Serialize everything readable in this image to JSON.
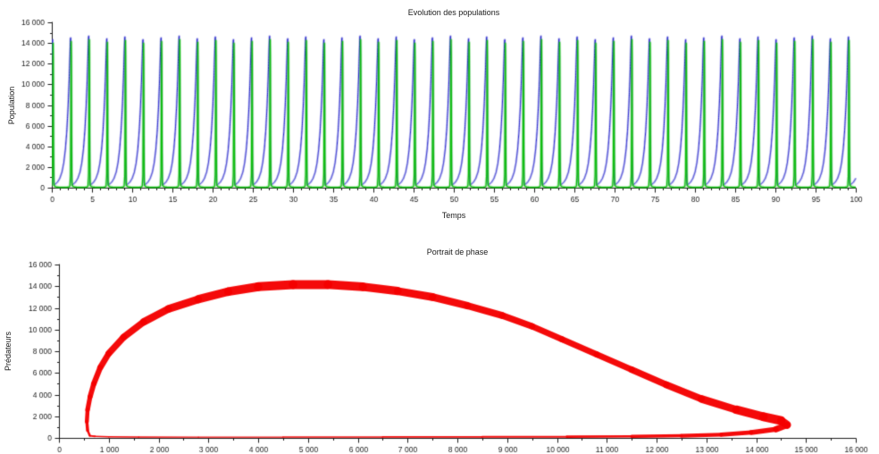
{
  "figure": {
    "background": "#ffffff",
    "axis_color": "#1b1b1b",
    "text_color": "#1b1b1b"
  },
  "chart_data": [
    {
      "id": "evolution",
      "type": "line",
      "title": "Evolution des populations",
      "xlabel": "Temps",
      "ylabel": "Population",
      "xlim": [
        0,
        100
      ],
      "ylim": [
        0,
        16000
      ],
      "x_major_step": 5,
      "x_minor_step": 1,
      "y_major_step": 2000,
      "y_minor_step": 1000,
      "grid": false,
      "legend": null,
      "xtick_labels": [
        "0",
        "5",
        "10",
        "15",
        "20",
        "25",
        "30",
        "35",
        "40",
        "45",
        "50",
        "55",
        "60",
        "65",
        "70",
        "75",
        "80",
        "85",
        "90",
        "95",
        "100"
      ],
      "ytick_labels": [
        "0",
        "2 000",
        "4 000",
        "6 000",
        "8 000",
        "10 000",
        "12 000",
        "14 000",
        "16 000"
      ],
      "description": "Two spiky oscillating population curves (Lotka-Volterra style), ~44 cycles over t=0..100, prey (blue) slow growth then crash, predators (green) narrow spikes, peaks ~14500",
      "series": [
        {
          "name": "blue-population",
          "color": "#2B2BCB",
          "period": 2.25,
          "phase_offset": 0.88,
          "peak_jitter": 0.012,
          "peak_value": 14500,
          "min_value": 280,
          "waveform": [
            [
              0,
              280
            ],
            [
              0.08,
              350
            ],
            [
              0.2,
              550
            ],
            [
              0.32,
              900
            ],
            [
              0.44,
              1500
            ],
            [
              0.54,
              2400
            ],
            [
              0.63,
              3700
            ],
            [
              0.71,
              5500
            ],
            [
              0.78,
              7800
            ],
            [
              0.84,
              10500
            ],
            [
              0.885,
              13200
            ],
            [
              0.91,
              14450
            ],
            [
              0.925,
              14500
            ],
            [
              0.94,
              11000
            ],
            [
              0.955,
              4500
            ],
            [
              0.97,
              1200
            ],
            [
              0.985,
              450
            ],
            [
              1,
              280
            ]
          ]
        },
        {
          "name": "green-population",
          "color": "#0FBE0F",
          "period": 2.25,
          "phase_offset": 0.88,
          "peak_jitter": 0.012,
          "peak_value": 14300,
          "min_value": 30,
          "waveform": [
            [
              0,
              250
            ],
            [
              0.05,
              120
            ],
            [
              0.15,
              60
            ],
            [
              0.3,
              35
            ],
            [
              0.5,
              30
            ],
            [
              0.7,
              35
            ],
            [
              0.82,
              60
            ],
            [
              0.88,
              150
            ],
            [
              0.915,
              1200
            ],
            [
              0.935,
              7500
            ],
            [
              0.95,
              14300
            ],
            [
              0.962,
              12500
            ],
            [
              0.975,
              4000
            ],
            [
              0.99,
              800
            ],
            [
              1,
              250
            ]
          ]
        }
      ]
    },
    {
      "id": "phase",
      "type": "line",
      "title": "Portrait de phase",
      "xlabel": "",
      "ylabel": "Prédateurs",
      "xlim": [
        0,
        16000
      ],
      "ylim": [
        0,
        16000
      ],
      "x_major_step": 1000,
      "x_minor_step": 500,
      "y_major_step": 2000,
      "y_minor_step": 1000,
      "grid": false,
      "legend": null,
      "xtick_labels": [
        "0",
        "1 000",
        "2 000",
        "3 000",
        "4 000",
        "5 000",
        "6 000",
        "7 000",
        "8 000",
        "9 000",
        "10 000",
        "11 000",
        "12 000",
        "13 000",
        "14 000",
        "15 000",
        "16 000"
      ],
      "ytick_labels": [
        "0",
        "2 000",
        "4 000",
        "6 000",
        "8 000",
        "10 000",
        "12 000",
        "14 000",
        "16 000"
      ],
      "description": "Thick red closed limit cycle: left branch near x=560, dome peaking ~14150 around x=4000-5500, right turnaround at ~(14600,1500), thin return branch hugging y=0",
      "series": [
        {
          "name": "limit-cycle",
          "color": "#F40000",
          "closed": true,
          "points": [
            [
              620,
              200,
              2
            ],
            [
              575,
              700,
              3
            ],
            [
              560,
              1500,
              4
            ],
            [
              575,
              2600,
              5
            ],
            [
              625,
              3800,
              5.5
            ],
            [
              700,
              5000,
              6
            ],
            [
              830,
              6500,
              6.5
            ],
            [
              1000,
              7800,
              7
            ],
            [
              1300,
              9300,
              7.5
            ],
            [
              1700,
              10700,
              8
            ],
            [
              2200,
              11900,
              8.5
            ],
            [
              2800,
              12800,
              9
            ],
            [
              3400,
              13500,
              9.5
            ],
            [
              4000,
              13950,
              10
            ],
            [
              4700,
              14150,
              10
            ],
            [
              5400,
              14150,
              10
            ],
            [
              6100,
              13950,
              9.5
            ],
            [
              6800,
              13550,
              9
            ],
            [
              7500,
              13000,
              8.5
            ],
            [
              8200,
              12200,
              8
            ],
            [
              8900,
              11300,
              7.5
            ],
            [
              9500,
              10300,
              7
            ],
            [
              10100,
              9100,
              7
            ],
            [
              10800,
              7700,
              7
            ],
            [
              11500,
              6300,
              7
            ],
            [
              12200,
              4900,
              7.5
            ],
            [
              12900,
              3600,
              8
            ],
            [
              13600,
              2600,
              9
            ],
            [
              14150,
              1950,
              10
            ],
            [
              14500,
              1600,
              10
            ],
            [
              14620,
              1200,
              8
            ],
            [
              14400,
              800,
              6
            ],
            [
              13900,
              500,
              5
            ],
            [
              13300,
              300,
              4.5
            ],
            [
              12500,
              200,
              4
            ],
            [
              11500,
              140,
              3
            ],
            [
              10200,
              110,
              2.2
            ],
            [
              8500,
              95,
              1.8
            ],
            [
              6500,
              85,
              1.6
            ],
            [
              4500,
              75,
              1.4
            ],
            [
              2800,
              70,
              1.3
            ],
            [
              1600,
              80,
              1.4
            ],
            [
              1000,
              105,
              1.6
            ],
            [
              720,
              145,
              1.8
            ]
          ]
        }
      ]
    }
  ]
}
